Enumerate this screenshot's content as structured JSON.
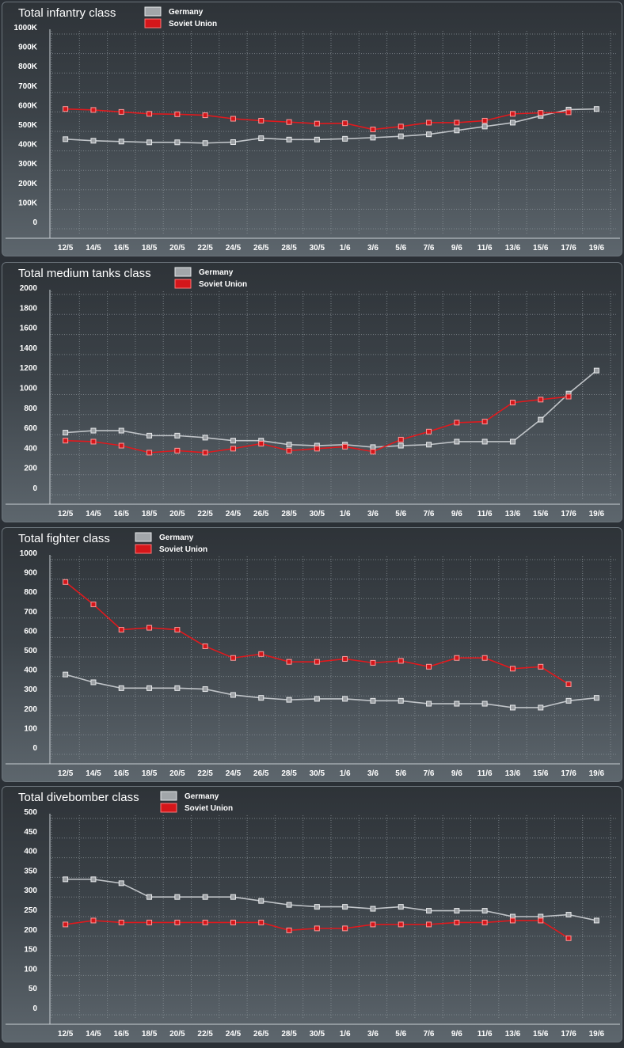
{
  "legend": {
    "germany": "Germany",
    "soviet": "Soviet Union"
  },
  "colors": {
    "germany_line": "#c0c4c8",
    "germany_marker": "#9a9ea2",
    "soviet_line": "#e0191d",
    "soviet_marker": "#d4161a"
  },
  "chart_data": [
    {
      "type": "line",
      "title": "Total infantry class",
      "categories": [
        "12/5",
        "14/5",
        "16/5",
        "18/5",
        "20/5",
        "22/5",
        "24/5",
        "26/5",
        "28/5",
        "30/5",
        "1/6",
        "3/6",
        "5/6",
        "7/6",
        "9/6",
        "11/6",
        "13/6",
        "15/6",
        "17/6",
        "19/6"
      ],
      "y_ticks": [
        "0",
        "100K",
        "200K",
        "300K",
        "400K",
        "500K",
        "600K",
        "700K",
        "800K",
        "900K",
        "1000K"
      ],
      "ylim": [
        0,
        1000000
      ],
      "grid": true,
      "legend_position": "top",
      "series": [
        {
          "name": "Germany",
          "values": [
            460000,
            452000,
            448000,
            444000,
            444000,
            440000,
            445000,
            465000,
            458000,
            458000,
            462000,
            468000,
            475000,
            485000,
            505000,
            525000,
            545000,
            580000,
            612000,
            615000
          ]
        },
        {
          "name": "Soviet Union",
          "values": [
            615000,
            610000,
            600000,
            590000,
            588000,
            583000,
            565000,
            555000,
            548000,
            540000,
            542000,
            510000,
            525000,
            545000,
            545000,
            555000,
            590000,
            595000,
            598000,
            null
          ]
        }
      ]
    },
    {
      "type": "line",
      "title": "Total medium tanks class",
      "categories": [
        "12/5",
        "14/5",
        "16/5",
        "18/5",
        "20/5",
        "22/5",
        "24/5",
        "26/5",
        "28/5",
        "30/5",
        "1/6",
        "3/6",
        "5/6",
        "7/6",
        "9/6",
        "11/6",
        "13/6",
        "15/6",
        "17/6",
        "19/6"
      ],
      "y_ticks": [
        "0",
        "200",
        "400",
        "600",
        "800",
        "1000",
        "1200",
        "1400",
        "1600",
        "1800",
        "2000"
      ],
      "ylim": [
        0,
        2000
      ],
      "grid": true,
      "legend_position": "top",
      "series": [
        {
          "name": "Germany",
          "values": [
            620,
            640,
            640,
            590,
            590,
            570,
            540,
            540,
            500,
            490,
            500,
            475,
            490,
            500,
            530,
            530,
            530,
            750,
            1010,
            1240
          ]
        },
        {
          "name": "Soviet Union",
          "values": [
            540,
            530,
            490,
            420,
            440,
            420,
            460,
            510,
            440,
            460,
            480,
            430,
            550,
            630,
            720,
            730,
            920,
            950,
            980,
            null
          ]
        }
      ]
    },
    {
      "type": "line",
      "title": "Total fighter class",
      "categories": [
        "12/5",
        "14/5",
        "16/5",
        "18/5",
        "20/5",
        "22/5",
        "24/5",
        "26/5",
        "28/5",
        "30/5",
        "1/6",
        "3/6",
        "5/6",
        "7/6",
        "9/6",
        "11/6",
        "13/6",
        "15/6",
        "17/6",
        "19/6"
      ],
      "y_ticks": [
        "0",
        "100",
        "200",
        "300",
        "400",
        "500",
        "600",
        "700",
        "800",
        "900",
        "1000"
      ],
      "ylim": [
        0,
        1000
      ],
      "grid": true,
      "legend_position": "top",
      "series": [
        {
          "name": "Germany",
          "values": [
            410,
            370,
            340,
            340,
            340,
            335,
            305,
            290,
            280,
            285,
            285,
            275,
            275,
            260,
            260,
            260,
            240,
            240,
            275,
            290
          ]
        },
        {
          "name": "Soviet Union",
          "values": [
            885,
            770,
            640,
            650,
            640,
            555,
            495,
            515,
            475,
            475,
            490,
            470,
            480,
            450,
            495,
            495,
            440,
            450,
            360,
            null
          ]
        }
      ]
    },
    {
      "type": "line",
      "title": "Total divebomber class",
      "categories": [
        "12/5",
        "14/5",
        "16/5",
        "18/5",
        "20/5",
        "22/5",
        "24/5",
        "26/5",
        "28/5",
        "30/5",
        "1/6",
        "3/6",
        "5/6",
        "7/6",
        "9/6",
        "11/6",
        "13/6",
        "15/6",
        "17/6",
        "19/6"
      ],
      "y_ticks": [
        "0",
        "50",
        "100",
        "150",
        "200",
        "250",
        "300",
        "350",
        "400",
        "450",
        "500"
      ],
      "ylim": [
        0,
        500
      ],
      "grid": true,
      "legend_position": "top",
      "series": [
        {
          "name": "Germany",
          "values": [
            345,
            345,
            335,
            300,
            300,
            300,
            300,
            290,
            280,
            275,
            275,
            270,
            275,
            265,
            265,
            265,
            250,
            250,
            255,
            240
          ]
        },
        {
          "name": "Soviet Union",
          "values": [
            230,
            240,
            235,
            235,
            235,
            235,
            235,
            235,
            215,
            220,
            220,
            230,
            230,
            230,
            235,
            235,
            240,
            240,
            195,
            null
          ]
        }
      ]
    }
  ]
}
